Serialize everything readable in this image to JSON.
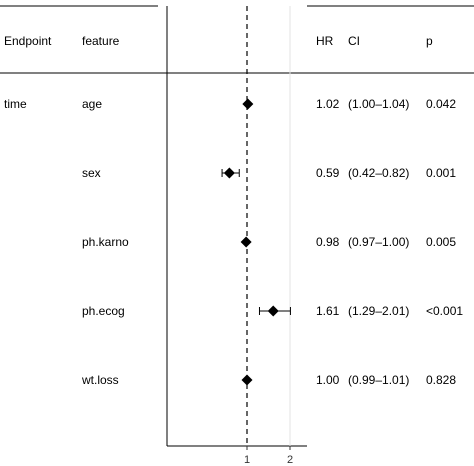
{
  "header": {
    "endpoint": "Endpoint",
    "feature": "feature",
    "hr": "HR",
    "ci": "CI",
    "p": "p"
  },
  "chart_data": {
    "type": "forest",
    "reference_line": 1,
    "x_ticks": [
      1,
      2
    ],
    "x_tick_labels": [
      "1",
      "2"
    ],
    "grid": "vertical at ticks",
    "rows": [
      {
        "endpoint": "time",
        "feature": "age",
        "hr": 1.02,
        "lo": 1.0,
        "hi": 1.04,
        "hr_text": "1.02",
        "ci_text": "(1.00–1.04)",
        "p_text": "0.042"
      },
      {
        "endpoint": "",
        "feature": "sex",
        "hr": 0.59,
        "lo": 0.42,
        "hi": 0.82,
        "hr_text": "0.59",
        "ci_text": "(0.42–0.82)",
        "p_text": "0.001"
      },
      {
        "endpoint": "",
        "feature": "ph.karno",
        "hr": 0.98,
        "lo": 0.97,
        "hi": 1.0,
        "hr_text": "0.98",
        "ci_text": "(0.97–1.00)",
        "p_text": "0.005"
      },
      {
        "endpoint": "",
        "feature": "ph.ecog",
        "hr": 1.61,
        "lo": 1.29,
        "hi": 2.01,
        "hr_text": "1.61",
        "ci_text": "(1.29–2.01)",
        "p_text": "<0.001"
      },
      {
        "endpoint": "",
        "feature": "wt.loss",
        "hr": 1.0,
        "lo": 0.99,
        "hi": 1.01,
        "hr_text": "1.00",
        "ci_text": "(0.99–1.01)",
        "p_text": "0.828"
      }
    ]
  }
}
